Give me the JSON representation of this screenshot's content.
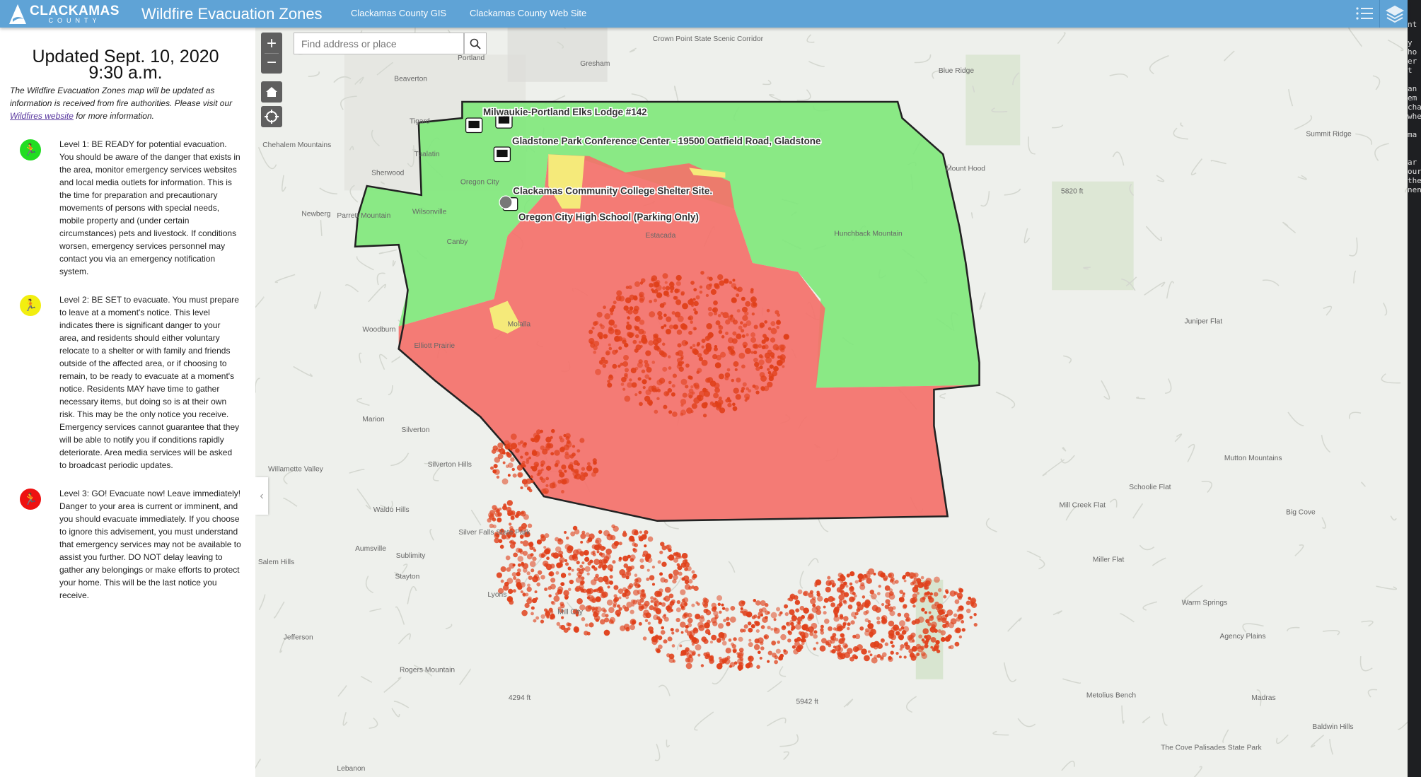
{
  "header": {
    "logo_text": "CLACKAMAS",
    "logo_sub": "COUNTY",
    "title": "Wildfire Evacuation Zones",
    "links": [
      "Clackamas County GIS",
      "Clackamas County Web Site"
    ],
    "icons": [
      "legend-list-icon",
      "layers-icon"
    ],
    "color": "#5fa3d6"
  },
  "sidebar": {
    "updated": "Updated Sept. 10, 2020",
    "time": "9:30 a.m.",
    "intro_pre": "The Wildfire Evacuation Zones map will be updated as information is received from fire authorities. Please visit our ",
    "intro_link": "Wildfires website",
    "intro_post": " for more information.",
    "levels": [
      {
        "color": "#22dd22",
        "badge": "BE READY",
        "title": "Level 1: BE READY",
        "text": " for potential evacuation. You should be aware of the danger that exists in the area, monitor emergency services websites and local media outlets for information. This is the time for preparation and precautionary movements of persons with special needs, mobile property and (under certain circumstances) pets and livestock. If conditions worsen, emergency services personnel may contact you via an emergency notification system."
      },
      {
        "color": "#f2ee10",
        "badge": "BE SET",
        "title": "Level 2: BE SET",
        "text": " to evacuate. You must prepare to leave at a moment's notice. This level indicates there is significant danger to your area, and residents should either voluntary relocate to a shelter or with family and friends outside of the affected area, or if choosing to remain, to be ready to evacuate at a moment's notice. Residents MAY have time to gather necessary items, but doing so is at their own risk. This may be the only notice you receive. Emergency services cannot guarantee that they will be able to notify you if conditions rapidly deteriorate. Area media services will be asked to broadcast periodic updates."
      },
      {
        "color": "#ee1111",
        "badge": "GO",
        "title": "Level 3: GO!",
        "text": " Evacuate now! Leave immediately! Danger to your area is current or imminent, and you should evacuate immediately. If you choose to ignore this advisement, you must understand that emergency services may not be available to assist you further. DO NOT delay leaving to gather any belongings or make efforts to protect your home. This will be the last notice you receive."
      }
    ]
  },
  "map": {
    "search_placeholder": "Find address or place",
    "zone_colors": {
      "level1": "#7ee87a",
      "level2": "#f5ea7a",
      "level3": "#f4716a",
      "fire": "#e0401a"
    },
    "shelters": [
      "Milwaukie-Portland Elks Lodge #142",
      "Gladstone Park Conference Center - 19500 Oatfield Road, Gladstone",
      "Clackamas Community College Shelter Site.",
      "Oregon City High School (Parking Only)"
    ],
    "places": [
      "Portland",
      "Gresham",
      "Beaverton",
      "Tigard",
      "Tualatin",
      "Sherwood",
      "Newberg",
      "Wilsonville",
      "Canby",
      "Oregon City",
      "Estacada",
      "Molalla",
      "Woodburn",
      "Elliott Prairie",
      "Marion",
      "Silverton",
      "Silverton Hills",
      "Waldo Hills",
      "Silver Falls State Park",
      "Aumsville",
      "Sublimity",
      "Stayton",
      "Lyons",
      "Mill City",
      "Salem Hills",
      "Jefferson",
      "Rogers Mountain",
      "Lebanon",
      "Crown Point State Scenic Corridor",
      "Chehalem Mountains",
      "Parrett Mountain",
      "Hunchback Mountain",
      "Mount Hood",
      "Blue Ridge",
      "Summit Ridge",
      "Juniper Flat",
      "Mutton Mountains",
      "Schoolie Flat",
      "Mill Creek Flat",
      "Big Cove",
      "Warm Springs",
      "Agency Plains",
      "Metolius Bench",
      "Madras",
      "Baldwin Hills",
      "The Cove Palisades State Park",
      "Willamette Valley",
      "Miller Flat",
      "5820 ft",
      "4294 ft",
      "5942 ft"
    ]
  },
  "terminal_fragments": [
    "",
    "",
    "nt",
    "",
    "y",
    "ho",
    "er",
    "t",
    "",
    "an",
    "em",
    "cha",
    "whe",
    "",
    "ma",
    "",
    "",
    "ar",
    "our",
    "the",
    "nen"
  ]
}
